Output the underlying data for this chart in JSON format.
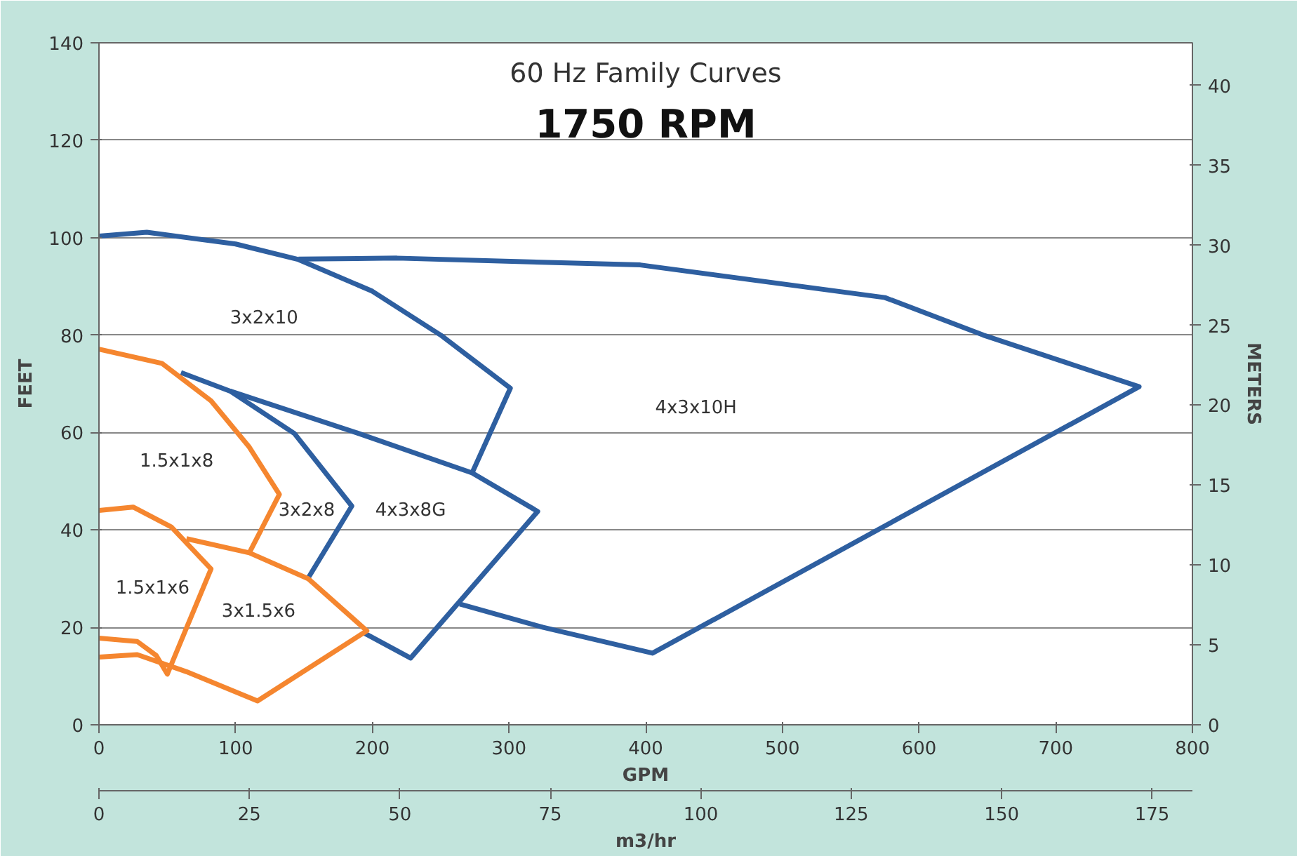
{
  "chart_data": {
    "type": "line",
    "title": "60 Hz Family Curves",
    "subtitle": "1750 RPM",
    "xlabel": "GPM",
    "x2label": "m3/hr",
    "ylabel": "FEET",
    "y2label": "METERS",
    "xlim": [
      0,
      800
    ],
    "xticks": [
      0,
      100,
      200,
      300,
      400,
      500,
      600,
      700,
      800
    ],
    "x2lim": [
      0,
      181.7
    ],
    "x2ticks": [
      0,
      25,
      50,
      75,
      100,
      125,
      150,
      175
    ],
    "ylim": [
      0,
      140
    ],
    "yticks": [
      0,
      20,
      40,
      60,
      80,
      100,
      120,
      140
    ],
    "y2lim": [
      0,
      42.67
    ],
    "y2ticks": [
      0,
      5,
      10,
      15,
      20,
      25,
      30,
      35,
      40
    ],
    "grid": "y",
    "marker": "none",
    "line_style": "solid",
    "series": [
      {
        "color": "#2e5fa0",
        "x": [
          0,
          35,
          100,
          146,
          200,
          250,
          301,
          273
        ],
        "values": [
          100.3,
          101.1,
          98.7,
          95.5,
          89,
          80,
          69.1,
          51.7
        ]
      },
      {
        "color": "#2e5fa0",
        "x": [
          146,
          218,
          396,
          575,
          647,
          761,
          405,
          325,
          264
        ],
        "values": [
          95.6,
          95.8,
          94.4,
          87.7,
          80,
          69.4,
          14.7,
          20,
          24.8
        ]
      },
      {
        "color": "#2e5fa0",
        "x": [
          60,
          96,
          143,
          185,
          153
        ],
        "values": [
          72.3,
          68.5,
          59.8,
          44.9,
          30.1
        ]
      },
      {
        "color": "#2e5fa0",
        "x": [
          96,
          189,
          273,
          321,
          228,
          193
        ],
        "values": [
          68.5,
          59.9,
          51.7,
          43.8,
          13.7,
          19
        ]
      },
      {
        "color": "#f5862f",
        "x": [
          0,
          46,
          82,
          110,
          132,
          110
        ],
        "values": [
          77.1,
          74.2,
          66.5,
          57,
          47.3,
          35.3
        ]
      },
      {
        "color": "#f5862f",
        "x": [
          0,
          25,
          53,
          82,
          50,
          42,
          28,
          0
        ],
        "values": [
          44,
          44.7,
          40.6,
          32,
          10.4,
          14.2,
          17.1,
          17.8
        ]
      },
      {
        "color": "#f5862f",
        "x": [
          64,
          110,
          153,
          196,
          116,
          64,
          28,
          0
        ],
        "values": [
          38.2,
          35.3,
          30,
          19.3,
          4.9,
          10.9,
          14.4,
          13.9
        ]
      }
    ],
    "annotations": [
      "3x2x10",
      "1.5x1x8",
      "3x2x8",
      "4x3x8G",
      "1.5x1x6",
      "3x1.5x6",
      "4x3x10H"
    ]
  }
}
